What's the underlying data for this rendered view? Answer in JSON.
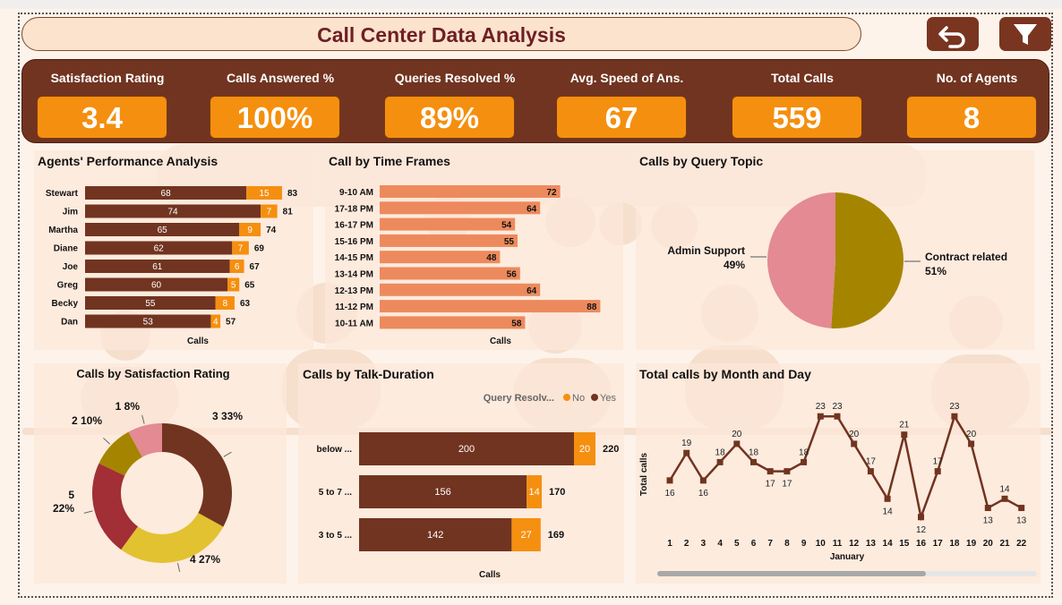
{
  "title": "Call Center Data Analysis",
  "kpis": [
    {
      "label": "Satisfaction Rating",
      "value": "3.4"
    },
    {
      "label": "Calls Answered %",
      "value": "100%"
    },
    {
      "label": "Queries Resolved %",
      "value": "89%"
    },
    {
      "label": "Avg. Speed of Ans.",
      "value": "67"
    },
    {
      "label": "Total Calls",
      "value": "559"
    },
    {
      "label": "No. of Agents",
      "value": "8"
    }
  ],
  "colors": {
    "dark_brown": "#713420",
    "orange": "#f58f0f",
    "salmon": "#ed8a5d",
    "pink": "#e38a92",
    "olive": "#a58500",
    "crimson": "#a12f35",
    "mustard": "#e2c230"
  },
  "icons": {
    "back": "undo-arrow-icon",
    "filter": "filter-funnel-icon"
  },
  "chart_data": [
    {
      "type": "bar",
      "title": "Agents' Performance Analysis",
      "xlabel": "Calls",
      "categories": [
        "Stewart",
        "Jim",
        "Martha",
        "Diane",
        "Joe",
        "Greg",
        "Becky",
        "Dan"
      ],
      "series": [
        {
          "values": [
            68,
            74,
            65,
            62,
            61,
            60,
            55,
            53
          ]
        },
        {
          "values": [
            15,
            7,
            9,
            7,
            6,
            5,
            8,
            4
          ]
        }
      ],
      "totals": [
        83,
        81,
        74,
        69,
        67,
        65,
        63,
        57
      ]
    },
    {
      "type": "bar",
      "title": "Call by Time Frames",
      "xlabel": "Calls",
      "categories": [
        "9-10 AM",
        "17-18 PM",
        "16-17 PM",
        "15-16 PM",
        "14-15 PM",
        "13-14 PM",
        "12-13 PM",
        "11-12 PM",
        "10-11 AM"
      ],
      "values": [
        72,
        64,
        54,
        55,
        48,
        56,
        64,
        88,
        58
      ]
    },
    {
      "type": "pie",
      "title": "Calls by Query Topic",
      "categories": [
        "Admin Support",
        "Contract related"
      ],
      "percent_labels": [
        "49%",
        "51%"
      ],
      "values": [
        49,
        51
      ]
    },
    {
      "type": "pie",
      "title": "Calls by Satisfaction Rating",
      "categories": [
        "3",
        "4",
        "5",
        "2",
        "1"
      ],
      "percent_labels": [
        "33%",
        "27%",
        "22%",
        "10%",
        "8%"
      ],
      "values": [
        33,
        27,
        22,
        10,
        8
      ]
    },
    {
      "type": "bar",
      "title": "Calls by Talk-Duration",
      "xlabel": "Calls",
      "legend_title": "Query Resolv...",
      "categories": [
        "below ...",
        "5 to 7 ...",
        "3 to 5 ..."
      ],
      "series": [
        {
          "name": "Yes",
          "values": [
            200,
            156,
            142
          ]
        },
        {
          "name": "No",
          "values": [
            20,
            14,
            27
          ]
        }
      ],
      "totals": [
        220,
        170,
        169
      ]
    },
    {
      "type": "line",
      "title": "Total calls by Month and Day",
      "xlabel": "January",
      "ylabel": "Total calls",
      "x": [
        1,
        2,
        3,
        4,
        5,
        6,
        7,
        8,
        9,
        10,
        11,
        12,
        13,
        14,
        15,
        16,
        17,
        18,
        19,
        20,
        21,
        22
      ],
      "values": [
        16,
        19,
        16,
        18,
        20,
        18,
        17,
        17,
        18,
        23,
        23,
        20,
        17,
        14,
        21,
        12,
        17,
        23,
        20,
        13,
        14,
        13
      ],
      "ylim": [
        11,
        24
      ]
    }
  ]
}
